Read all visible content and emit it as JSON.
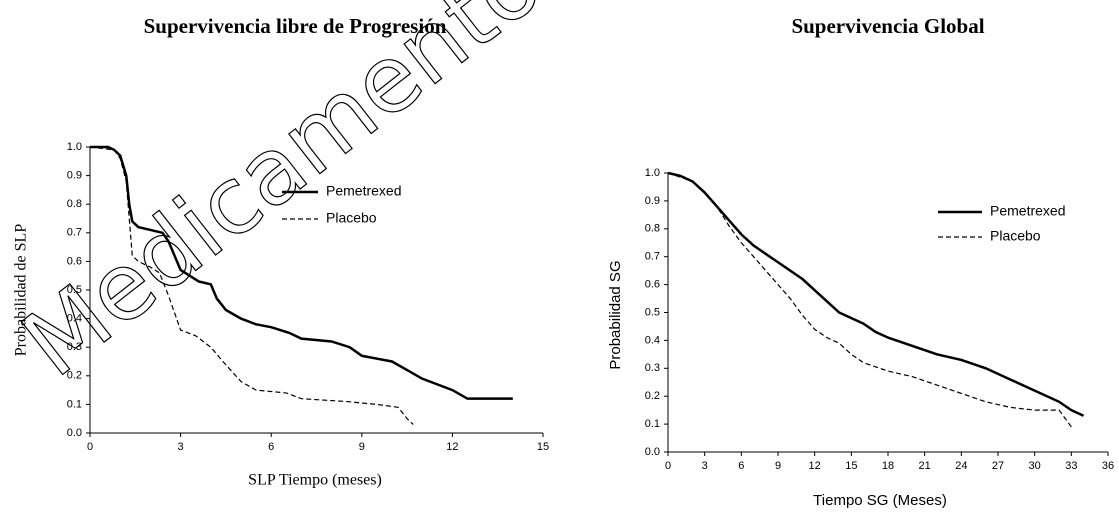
{
  "watermark": "Medicamento",
  "chart_data": [
    {
      "type": "line",
      "title": "Supervivencia libre de Progresión",
      "x_label": "SLP Tiempo (meses)",
      "y_label": "Probabilidad de SLP",
      "xlim": [
        0,
        15
      ],
      "xticks": [
        0,
        3,
        6,
        9,
        12,
        15
      ],
      "ylim": [
        0,
        1
      ],
      "yticks": [
        {
          "value": 0,
          "label": "0.0"
        },
        {
          "value": 0.1,
          "label": "0.1"
        },
        {
          "value": 0.2,
          "label": "0.2"
        },
        {
          "value": 0.3,
          "label": "0.3"
        },
        {
          "value": 0.4,
          "label": "0.4"
        },
        {
          "value": 0.5,
          "label": "0.5"
        },
        {
          "value": 0.6,
          "label": "0.6"
        },
        {
          "value": 0.7,
          "label": "0.7"
        },
        {
          "value": 0.8,
          "label": "0.8"
        },
        {
          "value": 0.9,
          "label": "0.9"
        },
        {
          "value": 1,
          "label": "1.0"
        }
      ],
      "series": [
        {
          "name": "Pemetrexed",
          "color": "#000000",
          "linestyle": "solid",
          "x": [
            0,
            0.6,
            0.8,
            1.0,
            1.2,
            1.3,
            1.4,
            1.6,
            2.0,
            2.4,
            2.6,
            2.8,
            3.0,
            3.3,
            3.6,
            4.0,
            4.2,
            4.5,
            5.0,
            5.5,
            6.0,
            6.6,
            7.0,
            8.0,
            8.6,
            9.0,
            10.0,
            10.5,
            11.0,
            11.5,
            12.0,
            12.5,
            14.0
          ],
          "values": [
            1.0,
            1.0,
            0.99,
            0.97,
            0.9,
            0.8,
            0.74,
            0.72,
            0.71,
            0.7,
            0.67,
            0.62,
            0.57,
            0.55,
            0.53,
            0.52,
            0.47,
            0.43,
            0.4,
            0.38,
            0.37,
            0.35,
            0.33,
            0.32,
            0.3,
            0.27,
            0.25,
            0.22,
            0.19,
            0.17,
            0.15,
            0.12,
            0.12
          ]
        },
        {
          "name": "Placebo",
          "color": "#000000",
          "linestyle": "dashed",
          "x": [
            0,
            0.8,
            1.0,
            1.2,
            1.4,
            1.6,
            2.0,
            2.3,
            2.6,
            2.8,
            3.0,
            3.5,
            4.0,
            4.4,
            5.0,
            5.5,
            6.5,
            7.0,
            8.5,
            9.5,
            10.2,
            10.5,
            10.7
          ],
          "values": [
            1.0,
            0.99,
            0.96,
            0.88,
            0.62,
            0.6,
            0.58,
            0.56,
            0.48,
            0.42,
            0.36,
            0.34,
            0.3,
            0.25,
            0.18,
            0.15,
            0.14,
            0.12,
            0.11,
            0.1,
            0.09,
            0.05,
            0.03
          ]
        }
      ]
    },
    {
      "type": "line",
      "title": "Supervivencia Global",
      "x_label": "Tiempo SG (Meses)",
      "y_label": "Probabilidad SG",
      "xlim": [
        0,
        36
      ],
      "xticks": [
        0,
        3,
        6,
        9,
        12,
        15,
        18,
        21,
        24,
        27,
        30,
        33,
        36
      ],
      "ylim": [
        0,
        1
      ],
      "yticks": [
        {
          "value": 0,
          "label": "0.0"
        },
        {
          "value": 0.1,
          "label": "0.1"
        },
        {
          "value": 0.2,
          "label": "0.2"
        },
        {
          "value": 0.3,
          "label": "0.3"
        },
        {
          "value": 0.4,
          "label": "0.4"
        },
        {
          "value": 0.5,
          "label": "0.5"
        },
        {
          "value": 0.6,
          "label": "0.6"
        },
        {
          "value": 0.7,
          "label": "0.7"
        },
        {
          "value": 0.8,
          "label": "0.8"
        },
        {
          "value": 0.9,
          "label": "0.9"
        },
        {
          "value": 1,
          "label": "1.0"
        }
      ],
      "series": [
        {
          "name": "Pemetrexed",
          "color": "#000000",
          "linestyle": "solid",
          "x": [
            0,
            1,
            2,
            3,
            4,
            5,
            6,
            7,
            8,
            9,
            10,
            11,
            12,
            13,
            14,
            15,
            16,
            17,
            18,
            20,
            22,
            24,
            26,
            28,
            30,
            32,
            33,
            34
          ],
          "values": [
            1.0,
            0.99,
            0.97,
            0.93,
            0.88,
            0.83,
            0.78,
            0.74,
            0.71,
            0.68,
            0.65,
            0.62,
            0.58,
            0.54,
            0.5,
            0.48,
            0.46,
            0.43,
            0.41,
            0.38,
            0.35,
            0.33,
            0.3,
            0.26,
            0.22,
            0.18,
            0.15,
            0.13
          ]
        },
        {
          "name": "Placebo",
          "color": "#000000",
          "linestyle": "dashed",
          "x": [
            0,
            2,
            3,
            4,
            5,
            6,
            7,
            8,
            9,
            10,
            11,
            12,
            13,
            14,
            15,
            16,
            18,
            20,
            22,
            24,
            26,
            28,
            30,
            32,
            33
          ],
          "values": [
            1.0,
            0.97,
            0.93,
            0.88,
            0.81,
            0.75,
            0.7,
            0.65,
            0.6,
            0.55,
            0.49,
            0.44,
            0.41,
            0.39,
            0.35,
            0.32,
            0.29,
            0.27,
            0.24,
            0.21,
            0.18,
            0.16,
            0.15,
            0.15,
            0.09
          ]
        }
      ]
    }
  ]
}
